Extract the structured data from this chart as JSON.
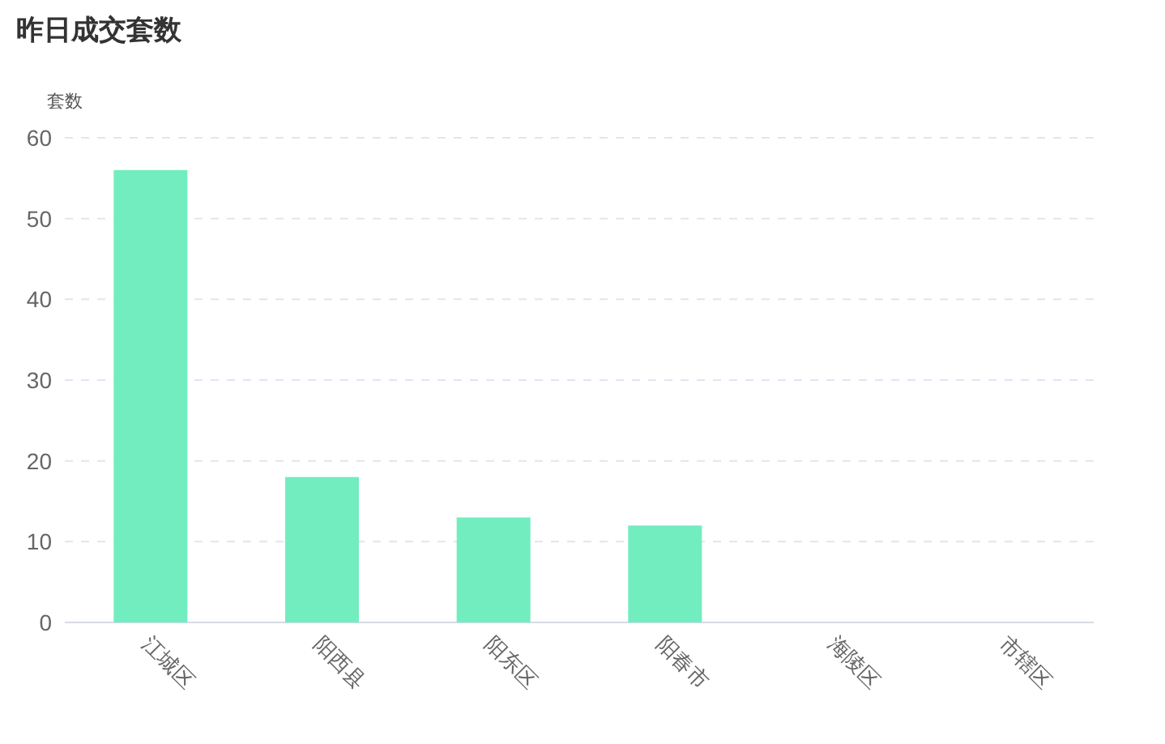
{
  "chart_data": {
    "type": "bar",
    "title": "昨日成交套数",
    "ylabel": "套数",
    "categories": [
      "江城区",
      "阳西县",
      "阳东区",
      "阳春市",
      "海陵区",
      "市辖区"
    ],
    "values": [
      56,
      18,
      13,
      12,
      0,
      0
    ],
    "color": "#72edbf",
    "ylim": [
      0,
      60
    ],
    "yticks": [
      0,
      10,
      20,
      30,
      40,
      50,
      60
    ],
    "grid": "y"
  }
}
